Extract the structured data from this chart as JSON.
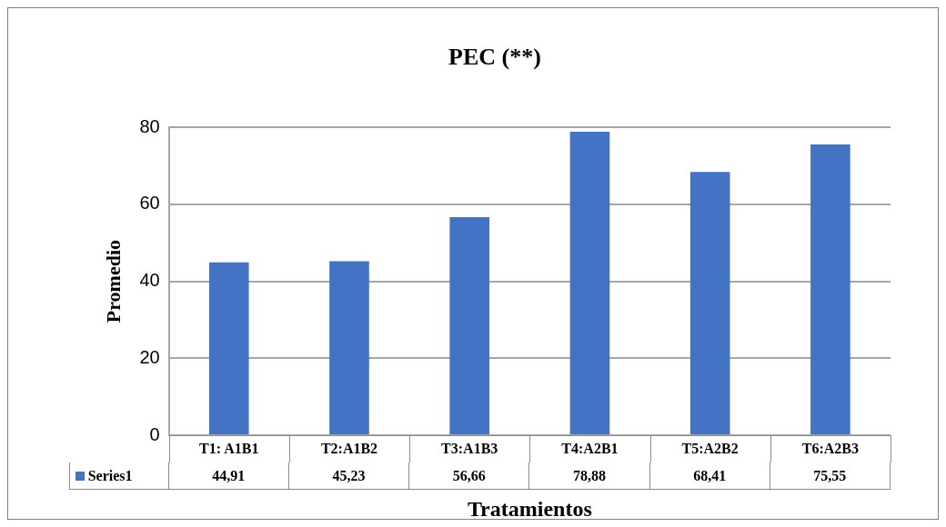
{
  "chart_data": {
    "type": "bar",
    "title": "PEC (**)",
    "xlabel": "Tratamientos",
    "ylabel": "Promedio",
    "categories": [
      "T1: A1B1",
      "T2:A1B2",
      "T3:A1B3",
      "T4:A2B1",
      "T5:A2B2",
      "T6:A2B3"
    ],
    "series": [
      {
        "name": "Series1",
        "color": "#4472c4",
        "values": [
          44.91,
          45.23,
          56.66,
          78.88,
          68.41,
          75.55
        ],
        "value_labels": [
          "44,91",
          "45,23",
          "56,66",
          "78,88",
          "68,41",
          "75,55"
        ]
      }
    ],
    "ylim": [
      0,
      80
    ],
    "yticks": [
      0,
      20,
      40,
      60,
      80
    ],
    "grid": "y"
  }
}
